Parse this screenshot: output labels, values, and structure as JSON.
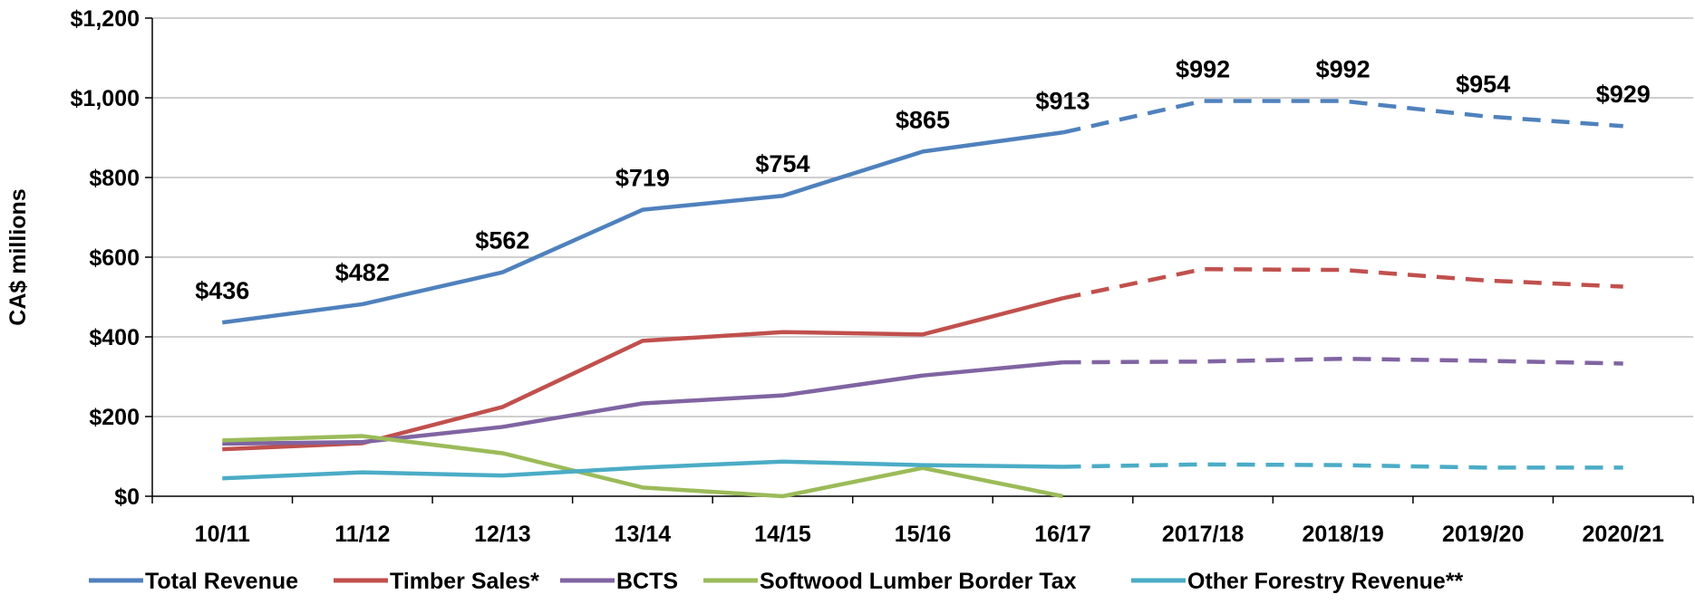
{
  "chart_data": {
    "type": "line",
    "ylabel": "CA$ millions",
    "ylim": [
      0,
      1200
    ],
    "yticks": [
      0,
      200,
      400,
      600,
      800,
      1000,
      1200
    ],
    "ytick_labels": [
      "$0",
      "$200",
      "$400",
      "$600",
      "$800",
      "$1,000",
      "$1,200"
    ],
    "categories": [
      "10/11",
      "11/12",
      "12/13",
      "13/14",
      "14/15",
      "15/16",
      "16/17",
      "2017/18",
      "2018/19",
      "2019/20",
      "2020/21"
    ],
    "actual_through_index": 6,
    "grid": true,
    "legend_position": "bottom",
    "series": [
      {
        "name": "Total Revenue",
        "color": "#4F81BD",
        "values": [
          436,
          482,
          562,
          719,
          754,
          865,
          913,
          992,
          992,
          954,
          929
        ],
        "data_labels": [
          "$436",
          "$482",
          "$562",
          "$719",
          "$754",
          "$865",
          "$913",
          "$992",
          "$992",
          "$954",
          "$929"
        ]
      },
      {
        "name": "Timber Sales*",
        "color": "#C0504D",
        "values": [
          118,
          133,
          224,
          390,
          412,
          406,
          497,
          570,
          568,
          542,
          526
        ]
      },
      {
        "name": "BCTS",
        "color": "#8064A2",
        "values": [
          132,
          136,
          174,
          233,
          253,
          303,
          336,
          338,
          345,
          340,
          333
        ]
      },
      {
        "name": "Softwood Lumber Border Tax",
        "color": "#9BBB59",
        "values": [
          140,
          151,
          108,
          22,
          0,
          71,
          0,
          null,
          null,
          null,
          null
        ]
      },
      {
        "name": "Other Forestry Revenue**",
        "color": "#4BACC6",
        "values": [
          45,
          60,
          52,
          72,
          87,
          78,
          74,
          80,
          78,
          72,
          72
        ]
      }
    ]
  }
}
